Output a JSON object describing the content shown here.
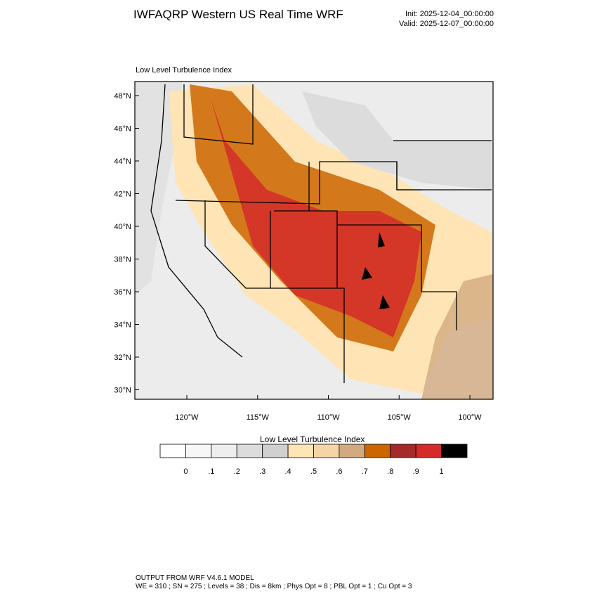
{
  "header": {
    "title": "IWFAQRP Western US Real Time WRF",
    "init": "Init: 2025-12-04_00:00:00",
    "valid": "Valid: 2025-12-07_00:00:00"
  },
  "map": {
    "subtitle": "Low Level Turbulence Index",
    "lat_labels": [
      "48°N",
      "46°N",
      "44°N",
      "42°N",
      "40°N",
      "38°N",
      "36°N",
      "34°N",
      "32°N",
      "30°N"
    ],
    "lon_labels": [
      "120°W",
      "115°W",
      "110°W",
      "105°W",
      "100°W"
    ]
  },
  "colorbar": {
    "title": "Low Level Turbulence Index",
    "labels": [
      "0",
      ".1",
      ".2",
      ".3",
      ".4",
      ".5",
      ".6",
      ".7",
      ".8",
      ".9",
      "1"
    ],
    "colors": [
      "#ffffff",
      "#f7f7f7",
      "#eeeeee",
      "#dcdcdc",
      "#d0d0d0",
      "#ffe4b5",
      "#f5d5a5",
      "#d2aa80",
      "#cc6600",
      "#a52a2a",
      "#d42a2a",
      "#000000"
    ]
  },
  "footer": {
    "line1": "OUTPUT FROM WRF V4.6.1 MODEL",
    "line2": "WE = 310 ; SN = 275 ; Levels = 38 ; Dis = 8km ; Phys Opt = 8 ; PBL Opt = 1 ; Cu Opt = 3"
  }
}
